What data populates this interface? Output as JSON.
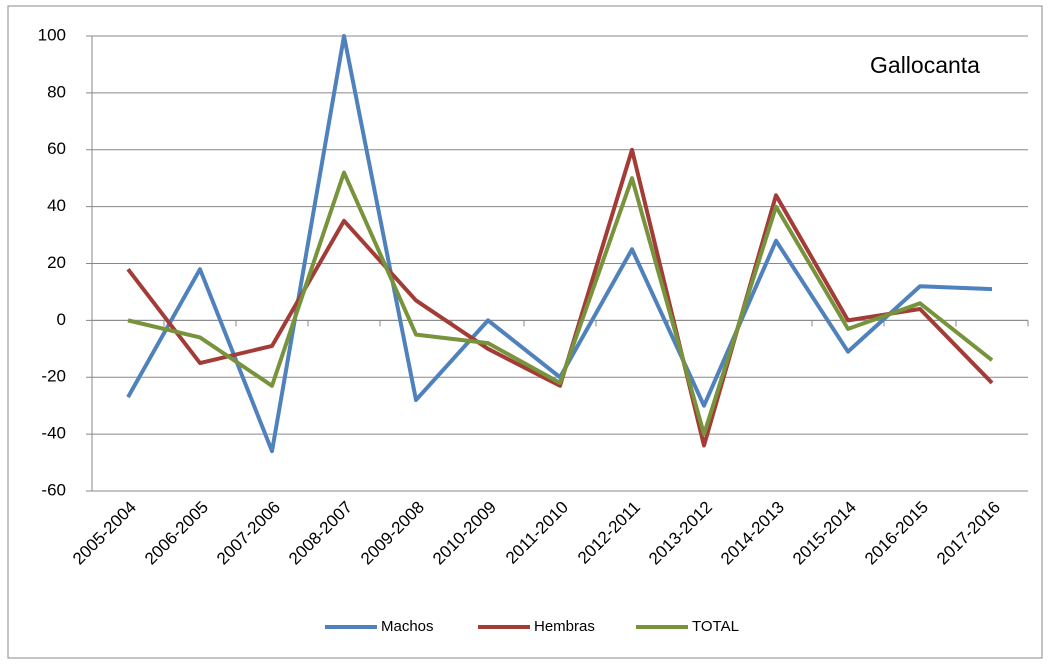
{
  "chart_data": {
    "type": "line",
    "title": "Gallocanta",
    "categories": [
      "2005-2004",
      "2006-2005",
      "2007-2006",
      "2008-2007",
      "2009-2008",
      "2010-2009",
      "2011-2010",
      "2012-2011",
      "2013-2012",
      "2014-2013",
      "2015-2014",
      "2016-2015",
      "2017-2016"
    ],
    "series": [
      {
        "name": "Machos",
        "color": "#4f81bd",
        "values": [
          -27,
          18,
          -46,
          100,
          -28,
          0,
          -20,
          25,
          -30,
          28,
          -11,
          12,
          11
        ]
      },
      {
        "name": "Hembras",
        "color": "#a33b37",
        "values": [
          18,
          -15,
          -9,
          35,
          7,
          -10,
          -23,
          60,
          -44,
          44,
          0,
          4,
          -22
        ]
      },
      {
        "name": "TOTAL",
        "color": "#77933c",
        "values": [
          0,
          -6,
          -23,
          52,
          -5,
          -8,
          -22,
          50,
          -40,
          40,
          -3,
          6,
          -14
        ]
      }
    ],
    "ylim": [
      -60,
      100
    ],
    "yticks": [
      -60,
      -40,
      -20,
      0,
      20,
      40,
      60,
      80,
      100
    ],
    "grid": true,
    "legend": "bottom"
  }
}
